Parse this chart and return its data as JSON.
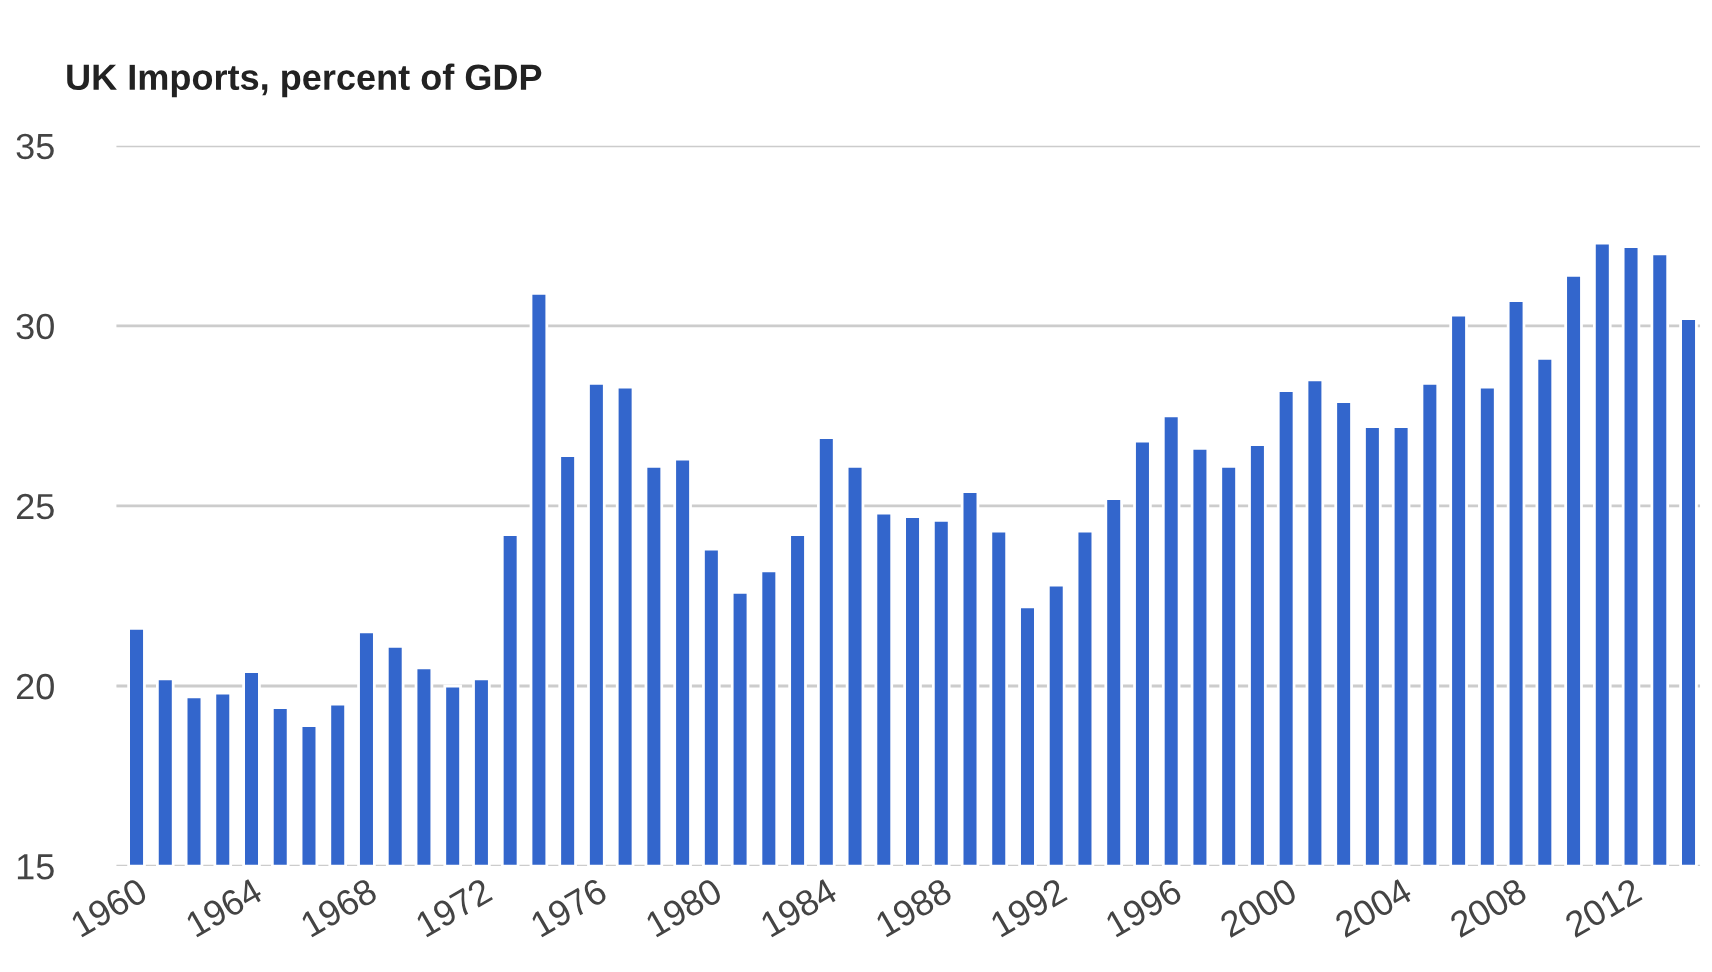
{
  "chart_data": {
    "type": "bar",
    "title": "UK Imports, percent of GDP",
    "categories": [
      "1960",
      null,
      null,
      null,
      "1964",
      null,
      null,
      null,
      "1968",
      null,
      null,
      null,
      "1972",
      null,
      null,
      null,
      "1976",
      null,
      null,
      null,
      "1980",
      null,
      null,
      null,
      "1984",
      null,
      null,
      null,
      "1988",
      null,
      null,
      null,
      "1992",
      null,
      null,
      null,
      "1996",
      null,
      null,
      null,
      "2000",
      null,
      null,
      null,
      "2004",
      null,
      null,
      null,
      "2008",
      null,
      null,
      null,
      "2012",
      null,
      null
    ],
    "values": [
      21.6,
      20.2,
      19.7,
      19.8,
      20.4,
      19.4,
      18.9,
      19.5,
      21.5,
      21.1,
      20.5,
      20.0,
      20.2,
      24.2,
      30.9,
      26.4,
      28.4,
      28.3,
      26.1,
      26.3,
      23.8,
      22.6,
      23.2,
      24.2,
      26.9,
      26.1,
      24.8,
      24.7,
      24.6,
      25.4,
      24.3,
      22.2,
      22.8,
      24.3,
      25.2,
      26.8,
      27.5,
      26.6,
      26.1,
      26.7,
      28.2,
      28.5,
      27.9,
      27.2,
      27.2,
      28.4,
      30.3,
      28.3,
      30.7,
      29.1,
      31.4,
      32.3,
      32.2,
      32.0,
      30.2
    ],
    "color": "#3366cc",
    "ylim": [
      15,
      35
    ],
    "yticks": [
      15,
      20,
      25,
      30,
      35
    ],
    "grid": "y",
    "legend": false
  }
}
